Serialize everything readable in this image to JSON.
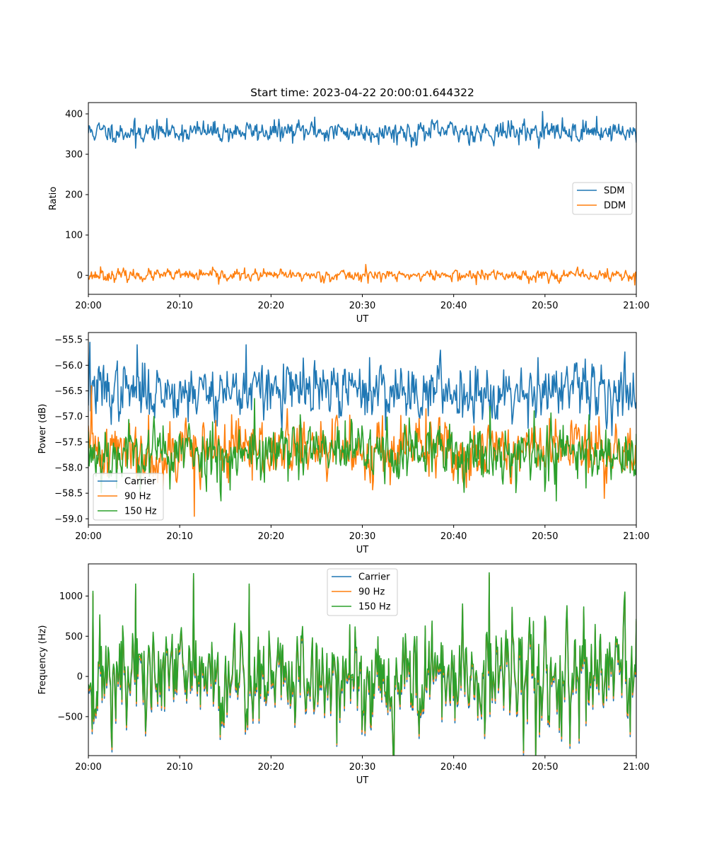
{
  "chart_data": [
    {
      "type": "line",
      "title": "Start time: 2023-04-22 20:00:01.644322",
      "xlabel": "UT",
      "ylabel": "Ratio",
      "x_ticks": [
        "20:00",
        "20:10",
        "20:20",
        "20:30",
        "20:40",
        "20:50",
        "21:00"
      ],
      "y_ticks": [
        0,
        100,
        200,
        300,
        400
      ],
      "xlim_minutes": [
        0,
        60
      ],
      "ylim": [
        -47,
        428
      ],
      "legend": "center-right",
      "series": [
        {
          "name": "SDM",
          "color": "#1f77b4",
          "mean": 356,
          "noise": 13,
          "seed": 11,
          "peaks": [
            [
              5.2,
              315
            ],
            [
              24.8,
              392
            ],
            [
              35.4,
              318
            ],
            [
              49.7,
              406
            ],
            [
              55.7,
              394
            ]
          ]
        },
        {
          "name": "DDM",
          "color": "#ff7f0e",
          "mean": 0,
          "noise": 7,
          "seed": 23,
          "peaks": [
            [
              1.3,
              21
            ],
            [
              14.3,
              -22
            ],
            [
              30.4,
              27
            ],
            [
              42.5,
              -23
            ],
            [
              59.8,
              -24
            ]
          ]
        }
      ]
    },
    {
      "type": "line",
      "title": "",
      "xlabel": "UT",
      "ylabel": "Power (dB)",
      "x_ticks": [
        "20:00",
        "20:10",
        "20:20",
        "20:30",
        "20:40",
        "20:50",
        "21:00"
      ],
      "y_ticks": [
        -59.0,
        -58.5,
        -58.0,
        -57.5,
        -57.0,
        -56.5,
        -56.0,
        -55.5
      ],
      "y_tick_labels": [
        "−59.0",
        "−58.5",
        "−58.0",
        "−57.5",
        "−57.0",
        "−56.5",
        "−56.0",
        "−55.5"
      ],
      "xlim_minutes": [
        0,
        60
      ],
      "ylim": [
        -59.12,
        -55.36
      ],
      "legend": "lower-left",
      "series": [
        {
          "name": "Carrier",
          "color": "#1f77b4",
          "mean": -56.5,
          "noise": 0.27,
          "seed": 37,
          "peaks": [
            [
              0.2,
              -55.55
            ],
            [
              5.3,
              -55.6
            ],
            [
              17.3,
              -55.6
            ],
            [
              30.8,
              -55.85
            ],
            [
              49.2,
              -55.85
            ]
          ]
        },
        {
          "name": "90 Hz",
          "color": "#ff7f0e",
          "mean": -57.65,
          "noise": 0.3,
          "seed": 41,
          "peaks": [
            [
              0.3,
              -56.4
            ],
            [
              11.6,
              -58.95
            ],
            [
              37.0,
              -56.85
            ],
            [
              56.5,
              -58.6
            ]
          ]
        },
        {
          "name": "150 Hz",
          "color": "#2ca02c",
          "mean": -57.7,
          "noise": 0.3,
          "seed": 53,
          "peaks": [
            [
              3.1,
              -58.4
            ],
            [
              14.5,
              -58.65
            ],
            [
              18.2,
              -56.65
            ],
            [
              44.0,
              -56.8
            ],
            [
              51.2,
              -58.65
            ]
          ]
        }
      ]
    },
    {
      "type": "line",
      "title": "",
      "xlabel": "UT",
      "ylabel": "Frequency (Hz)",
      "x_ticks": [
        "20:00",
        "20:10",
        "20:20",
        "20:30",
        "20:40",
        "20:50",
        "21:00"
      ],
      "y_ticks": [
        -500,
        0,
        500,
        1000
      ],
      "y_tick_labels": [
        "−500",
        "0",
        "500",
        "1000"
      ],
      "xlim_minutes": [
        0,
        60
      ],
      "ylim": [
        -985,
        1400
      ],
      "legend": "upper-center",
      "series": [
        {
          "name": "Carrier",
          "color": "#1f77b4",
          "mean": -60,
          "noise": 330,
          "seed": 71,
          "peaks": [
            [
              0.5,
              1000
            ],
            [
              5.2,
              1090
            ],
            [
              11.5,
              1220
            ],
            [
              17.6,
              1090
            ],
            [
              27.2,
              -870
            ],
            [
              43.9,
              1230
            ],
            [
              59.3,
              -750
            ]
          ]
        },
        {
          "name": "90 Hz",
          "color": "#ff7f0e",
          "mean": -30,
          "noise": 330,
          "seed": 71,
          "peaks": [
            [
              0.5,
              1030
            ],
            [
              5.2,
              1120
            ],
            [
              11.5,
              1250
            ],
            [
              17.6,
              1120
            ],
            [
              27.2,
              -850
            ],
            [
              43.9,
              1260
            ],
            [
              59.3,
              -720
            ]
          ]
        },
        {
          "name": "150 Hz",
          "color": "#2ca02c",
          "mean": 0,
          "noise": 330,
          "seed": 71,
          "peaks": [
            [
              0.5,
              1060
            ],
            [
              5.2,
              1150
            ],
            [
              11.5,
              1280
            ],
            [
              17.6,
              1150
            ],
            [
              27.2,
              -830
            ],
            [
              43.9,
              1290
            ],
            [
              59.3,
              -690
            ]
          ]
        }
      ]
    }
  ]
}
